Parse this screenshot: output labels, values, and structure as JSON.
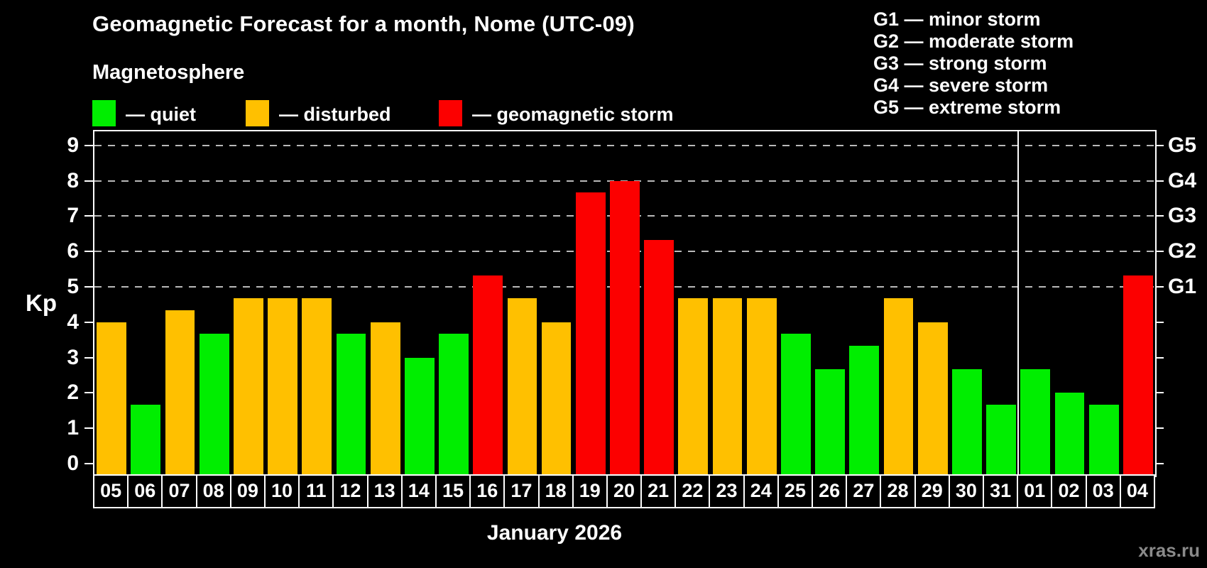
{
  "header": {
    "title": "Geomagnetic Forecast for a month, Nome (UTC-09)",
    "subtitle": "Magnetosphere"
  },
  "legend": {
    "items": [
      {
        "name": "quiet",
        "label": "— quiet",
        "color": "#00ee00"
      },
      {
        "name": "disturbed",
        "label": "— disturbed",
        "color": "#ffc000"
      },
      {
        "name": "storm",
        "label": "— geomagnetic storm",
        "color": "#fc0000"
      }
    ]
  },
  "storm_scale_legend": [
    "G1 — minor storm",
    "G2 — moderate storm",
    "G3 — strong storm",
    "G4 — severe storm",
    "G5 — extreme storm"
  ],
  "footer": {
    "month_label": "January 2026",
    "watermark": "xras.ru"
  },
  "chart_data": {
    "type": "bar",
    "title": "Geomagnetic Forecast for a month, Nome (UTC-09)",
    "ylabel": "Kp",
    "ylim": [
      0,
      9
    ],
    "yticks": [
      0,
      1,
      2,
      3,
      4,
      5,
      6,
      7,
      8,
      9
    ],
    "gridlines_at": [
      5,
      6,
      7,
      8,
      9
    ],
    "grid": "dashed, only at storm levels G1–G5",
    "legend_position": "top",
    "right_axis_labels": [
      {
        "label": "G1",
        "kp": 5
      },
      {
        "label": "G2",
        "kp": 6
      },
      {
        "label": "G3",
        "kp": 7
      },
      {
        "label": "G4",
        "kp": 8
      },
      {
        "label": "G5",
        "kp": 9
      }
    ],
    "categories": [
      "05",
      "06",
      "07",
      "08",
      "09",
      "10",
      "11",
      "12",
      "13",
      "14",
      "15",
      "16",
      "17",
      "18",
      "19",
      "20",
      "21",
      "22",
      "23",
      "24",
      "25",
      "26",
      "27",
      "28",
      "29",
      "30",
      "31",
      "01",
      "02",
      "03",
      "04"
    ],
    "values": [
      4,
      1.67,
      4.33,
      3.67,
      4.67,
      4.67,
      4.67,
      3.67,
      4,
      3,
      3.67,
      5.33,
      4.67,
      4,
      7.67,
      8,
      6.33,
      4.67,
      4.67,
      4.67,
      3.67,
      2.67,
      3.33,
      4.67,
      4,
      2.67,
      1.67,
      2.67,
      2,
      1.67,
      5.33
    ],
    "states": [
      "disturbed",
      "quiet",
      "disturbed",
      "quiet",
      "disturbed",
      "disturbed",
      "disturbed",
      "quiet",
      "disturbed",
      "quiet",
      "quiet",
      "storm",
      "disturbed",
      "disturbed",
      "storm",
      "storm",
      "storm",
      "disturbed",
      "disturbed",
      "disturbed",
      "quiet",
      "quiet",
      "quiet",
      "disturbed",
      "disturbed",
      "quiet",
      "quiet",
      "quiet",
      "quiet",
      "quiet",
      "storm"
    ],
    "state_colors": {
      "quiet": "#00ee00",
      "disturbed": "#ffc000",
      "storm": "#fc0000"
    },
    "month_divider_after": "31"
  }
}
